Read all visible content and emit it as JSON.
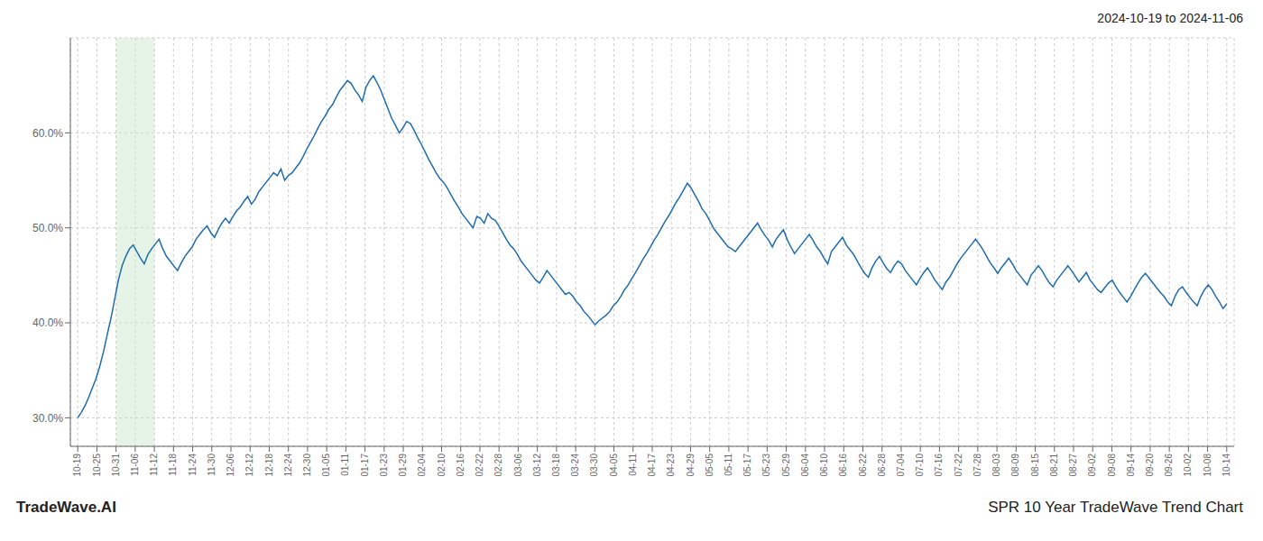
{
  "chart_data": {
    "type": "line",
    "title": "SPR 10 Year TradeWave Trend Chart",
    "subtitle": "2024-10-19 to 2024-11-06",
    "annotations": [
      "TradeWave.AI"
    ],
    "color": "#1f6cb0",
    "grid": true,
    "xlim": [
      -2,
      313
    ],
    "xticks": [
      {
        "value": 0,
        "label": "10-19"
      },
      {
        "value": 5.1833,
        "label": "10-25"
      },
      {
        "value": 10.3667,
        "label": "10-31"
      },
      {
        "value": 15.55,
        "label": "11-06"
      },
      {
        "value": 20.7333,
        "label": "11-12"
      },
      {
        "value": 25.9167,
        "label": "11-18"
      },
      {
        "value": 31.1,
        "label": "11-24"
      },
      {
        "value": 36.2833,
        "label": "11-30"
      },
      {
        "value": 41.4667,
        "label": "12-06"
      },
      {
        "value": 46.65,
        "label": "12-12"
      },
      {
        "value": 51.8333,
        "label": "12-18"
      },
      {
        "value": 57.0167,
        "label": "12-24"
      },
      {
        "value": 62.2,
        "label": "12-30"
      },
      {
        "value": 67.3833,
        "label": "01-05"
      },
      {
        "value": 72.5667,
        "label": "01-11"
      },
      {
        "value": 77.75,
        "label": "01-17"
      },
      {
        "value": 82.9333,
        "label": "01-23"
      },
      {
        "value": 88.1167,
        "label": "01-29"
      },
      {
        "value": 93.3,
        "label": "02-04"
      },
      {
        "value": 98.4833,
        "label": "02-10"
      },
      {
        "value": 103.6667,
        "label": "02-16"
      },
      {
        "value": 108.85,
        "label": "02-22"
      },
      {
        "value": 114.0333,
        "label": "02-28"
      },
      {
        "value": 119.2167,
        "label": "03-06"
      },
      {
        "value": 124.4,
        "label": "03-12"
      },
      {
        "value": 129.5833,
        "label": "03-18"
      },
      {
        "value": 134.7667,
        "label": "03-24"
      },
      {
        "value": 139.95,
        "label": "03-30"
      },
      {
        "value": 145.1333,
        "label": "04-05"
      },
      {
        "value": 150.3167,
        "label": "04-11"
      },
      {
        "value": 155.5,
        "label": "04-17"
      },
      {
        "value": 160.6833,
        "label": "04-23"
      },
      {
        "value": 165.8667,
        "label": "04-29"
      },
      {
        "value": 171.05,
        "label": "05-05"
      },
      {
        "value": 176.2333,
        "label": "05-11"
      },
      {
        "value": 181.4167,
        "label": "05-17"
      },
      {
        "value": 186.6,
        "label": "05-23"
      },
      {
        "value": 191.7833,
        "label": "05-29"
      },
      {
        "value": 196.9667,
        "label": "06-04"
      },
      {
        "value": 202.15,
        "label": "06-10"
      },
      {
        "value": 207.3333,
        "label": "06-16"
      },
      {
        "value": 212.5167,
        "label": "06-22"
      },
      {
        "value": 217.7,
        "label": "06-28"
      },
      {
        "value": 222.8833,
        "label": "07-04"
      },
      {
        "value": 228.0667,
        "label": "07-10"
      },
      {
        "value": 233.25,
        "label": "07-16"
      },
      {
        "value": 238.4333,
        "label": "07-22"
      },
      {
        "value": 243.6167,
        "label": "07-28"
      },
      {
        "value": 248.8,
        "label": "08-03"
      },
      {
        "value": 253.9833,
        "label": "08-09"
      },
      {
        "value": 259.1667,
        "label": "08-15"
      },
      {
        "value": 264.35,
        "label": "08-21"
      },
      {
        "value": 269.5333,
        "label": "08-27"
      },
      {
        "value": 274.7167,
        "label": "09-02"
      },
      {
        "value": 279.9,
        "label": "09-08"
      },
      {
        "value": 285.0833,
        "label": "09-14"
      },
      {
        "value": 290.2667,
        "label": "09-20"
      },
      {
        "value": 295.45,
        "label": "09-26"
      },
      {
        "value": 300.6333,
        "label": "10-02"
      },
      {
        "value": 305.8167,
        "label": "10-08"
      },
      {
        "value": 311,
        "label": "10-14"
      }
    ],
    "shaded_region": {
      "xlim": [
        10.3667,
        20.7333
      ],
      "color": "#c8e6c9"
    },
    "ylim": [
      0.27,
      0.7
    ],
    "yticks": [
      {
        "value": 0.3,
        "label": "30.0%"
      },
      {
        "value": 0.4,
        "label": "40.0%"
      },
      {
        "value": 0.5,
        "label": "50.0%"
      },
      {
        "value": 0.6,
        "label": "60.0%"
      }
    ],
    "values": [
      0.3,
      0.306,
      0.313,
      0.322,
      0.332,
      0.342,
      0.355,
      0.37,
      0.388,
      0.405,
      0.425,
      0.445,
      0.46,
      0.47,
      0.478,
      0.482,
      0.475,
      0.468,
      0.462,
      0.472,
      0.478,
      0.483,
      0.488,
      0.478,
      0.47,
      0.465,
      0.46,
      0.455,
      0.463,
      0.47,
      0.475,
      0.48,
      0.488,
      0.493,
      0.498,
      0.502,
      0.495,
      0.49,
      0.498,
      0.505,
      0.51,
      0.505,
      0.512,
      0.518,
      0.522,
      0.528,
      0.533,
      0.525,
      0.53,
      0.538,
      0.543,
      0.548,
      0.553,
      0.558,
      0.555,
      0.562,
      0.55,
      0.555,
      0.558,
      0.563,
      0.568,
      0.575,
      0.583,
      0.59,
      0.597,
      0.605,
      0.612,
      0.618,
      0.625,
      0.63,
      0.638,
      0.645,
      0.65,
      0.655,
      0.652,
      0.645,
      0.64,
      0.633,
      0.648,
      0.655,
      0.66,
      0.653,
      0.645,
      0.635,
      0.625,
      0.615,
      0.608,
      0.6,
      0.605,
      0.612,
      0.61,
      0.603,
      0.595,
      0.588,
      0.58,
      0.572,
      0.565,
      0.558,
      0.552,
      0.548,
      0.542,
      0.535,
      0.528,
      0.522,
      0.515,
      0.51,
      0.505,
      0.5,
      0.512,
      0.51,
      0.505,
      0.515,
      0.51,
      0.508,
      0.502,
      0.495,
      0.488,
      0.482,
      0.478,
      0.472,
      0.465,
      0.46,
      0.455,
      0.45,
      0.445,
      0.442,
      0.448,
      0.455,
      0.45,
      0.445,
      0.44,
      0.435,
      0.43,
      0.432,
      0.428,
      0.422,
      0.418,
      0.412,
      0.408,
      0.403,
      0.398,
      0.402,
      0.405,
      0.408,
      0.412,
      0.418,
      0.422,
      0.428,
      0.435,
      0.44,
      0.447,
      0.453,
      0.46,
      0.467,
      0.473,
      0.48,
      0.487,
      0.493,
      0.5,
      0.507,
      0.513,
      0.52,
      0.527,
      0.533,
      0.54,
      0.547,
      0.542,
      0.535,
      0.528,
      0.52,
      0.515,
      0.508,
      0.5,
      0.495,
      0.49,
      0.485,
      0.48,
      0.478,
      0.475,
      0.48,
      0.485,
      0.49,
      0.495,
      0.5,
      0.505,
      0.498,
      0.492,
      0.487,
      0.48,
      0.488,
      0.493,
      0.498,
      0.488,
      0.48,
      0.473,
      0.478,
      0.483,
      0.488,
      0.493,
      0.487,
      0.48,
      0.475,
      0.468,
      0.462,
      0.475,
      0.48,
      0.485,
      0.49,
      0.482,
      0.477,
      0.472,
      0.465,
      0.458,
      0.452,
      0.448,
      0.458,
      0.465,
      0.47,
      0.463,
      0.457,
      0.453,
      0.46,
      0.465,
      0.462,
      0.455,
      0.45,
      0.445,
      0.44,
      0.447,
      0.453,
      0.458,
      0.452,
      0.445,
      0.44,
      0.435,
      0.443,
      0.448,
      0.455,
      0.462,
      0.468,
      0.473,
      0.478,
      0.483,
      0.488,
      0.483,
      0.477,
      0.47,
      0.463,
      0.458,
      0.452,
      0.458,
      0.463,
      0.468,
      0.462,
      0.455,
      0.45,
      0.445,
      0.44,
      0.45,
      0.455,
      0.46,
      0.455,
      0.448,
      0.442,
      0.438,
      0.445,
      0.45,
      0.455,
      0.46,
      0.455,
      0.449,
      0.443,
      0.448,
      0.453,
      0.445,
      0.44,
      0.435,
      0.432,
      0.437,
      0.442,
      0.445,
      0.438,
      0.432,
      0.427,
      0.422,
      0.428,
      0.435,
      0.442,
      0.448,
      0.452,
      0.447,
      0.442,
      0.437,
      0.432,
      0.428,
      0.422,
      0.418,
      0.428,
      0.435,
      0.438,
      0.432,
      0.427,
      0.422,
      0.418,
      0.428,
      0.435,
      0.44,
      0.435,
      0.428,
      0.422,
      0.415,
      0.42
    ]
  }
}
